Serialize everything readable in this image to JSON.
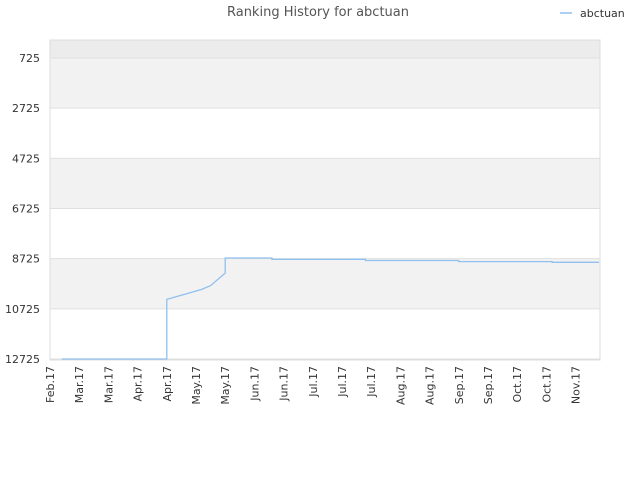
{
  "chart_data": {
    "type": "line",
    "title": "Ranking History for abctuan",
    "legend": {
      "position": "top-right",
      "entries": [
        "abctuan"
      ]
    },
    "y_inverted": true,
    "ylim": [
      12725,
      0
    ],
    "yticks": [
      725,
      2725,
      4725,
      6725,
      8725,
      10725,
      12725
    ],
    "x_tick_labels": [
      "Feb.17",
      "Mar.17",
      "Mar.17",
      "Apr.17",
      "Apr.17",
      "May.17",
      "May.17",
      "Jun.17",
      "Jun.17",
      "Jul.17",
      "Jul.17",
      "Jul.17",
      "Aug.17",
      "Aug.17",
      "Sep.17",
      "Sep.17",
      "Oct.17",
      "Oct.17",
      "Nov.17"
    ],
    "grid": true,
    "series": [
      {
        "name": "abctuan",
        "color": "#90c0ee",
        "x": [
          0.4,
          4.0,
          4.0,
          4.6,
          5.2,
          5.5,
          6.0,
          6.0,
          7.6,
          7.6,
          10.8,
          10.8,
          14.0,
          14.0,
          17.2,
          17.2,
          18.8
        ],
        "y": [
          12725,
          12725,
          10350,
          10150,
          9950,
          9800,
          9300,
          8700,
          8700,
          8750,
          8750,
          8800,
          8800,
          8840,
          8840,
          8870,
          8870
        ]
      }
    ]
  }
}
